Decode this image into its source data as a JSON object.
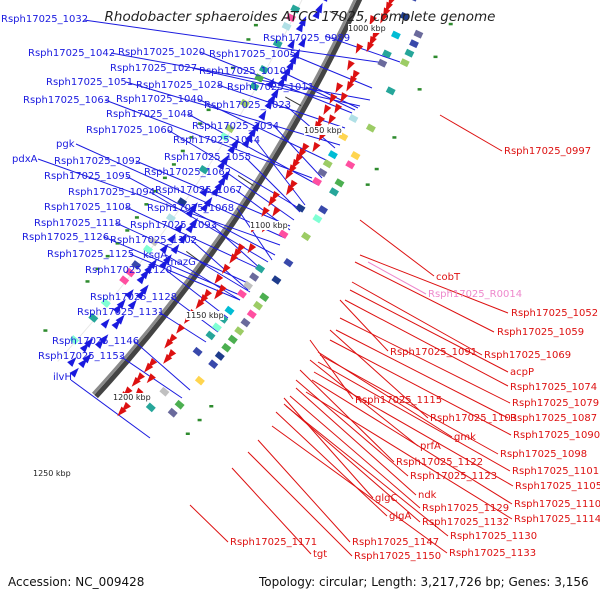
{
  "title": "Rhodobacter sphaeroides ATCC 17025, complete genome",
  "accession": "Accession: NC_009428",
  "summary": "Topology: circular; Length: 3,217,726 bp; Genes: 3,156",
  "colors": {
    "forward": "#1a1adf",
    "reverse": "#dd1111",
    "rna": "#ee88cc",
    "backbone": "#8a8a8a",
    "backbone_shadow": "#444444"
  },
  "scale_ticks": [
    "1000 kbp",
    "1050 kbp",
    "1100 kbp",
    "1150 kbp",
    "1200 kbp",
    "1250 kbp"
  ],
  "forward_genes": [
    "Rsph17025_1032",
    "Rsph17025_0989",
    "Rsph17025_1042",
    "Rsph17025_1020",
    "Rsph17025_1005",
    "Rsph17025_1027",
    "Rsph17025_1010",
    "Rsph17025_1051",
    "Rsph17025_1028",
    "Rsph17025_1011",
    "Rsph17025_1063",
    "Rsph17025_1040",
    "Rsph17025_1023",
    "Rsph17025_1048",
    "Rsph17025_1034",
    "Rsph17025_1060",
    "Rsph17025_1044",
    "pgk",
    "Rsph17025_1055",
    "pdxA",
    "Rsph17025_1092",
    "Rsph17025_1062",
    "Rsph17025_1095",
    "Rsph17025_1067",
    "Rsph17025_1094",
    "Rsph17025_1108",
    "Rsph17025_1068",
    "Rsph17025_1118",
    "Rsph17025_1093",
    "Rsph17025_1126",
    "Rsph17025_1102",
    "Rsph17025_1125",
    "ksgA",
    "mazG",
    "Rsph17025_1120",
    "Rsph17025_1128",
    "Rsph17025_1131",
    "Rsph17025_1146",
    "Rsph17025_1153",
    "ilvH"
  ],
  "reverse_genes": [
    "Rsph17025_0997",
    "cobT",
    "Rsph17025_1052",
    "Rsph17025_1059",
    "Rsph17025_1091",
    "Rsph17025_1069",
    "acpP",
    "Rsph17025_1074",
    "Rsph17025_1115",
    "Rsph17025_1079",
    "Rsph17025_1103",
    "Rsph17025_1087",
    "Rsph17025_1090",
    "prfA",
    "gmk",
    "Rsph17025_1098",
    "Rsph17025_1122",
    "Rsph17025_1101",
    "Rsph17025_1123",
    "Rsph17025_1105",
    "glgC",
    "ndk",
    "Rsph17025_1110",
    "Rsph17025_1129",
    "glgA",
    "Rsph17025_1114",
    "Rsph17025_1132",
    "Rsph17025_1130",
    "Rsph17025_1171",
    "Rsph17025_1147",
    "tgt",
    "Rsph17025_1150",
    "Rsph17025_1133"
  ],
  "rna_genes": [
    "Rsph17025_R0014"
  ]
}
